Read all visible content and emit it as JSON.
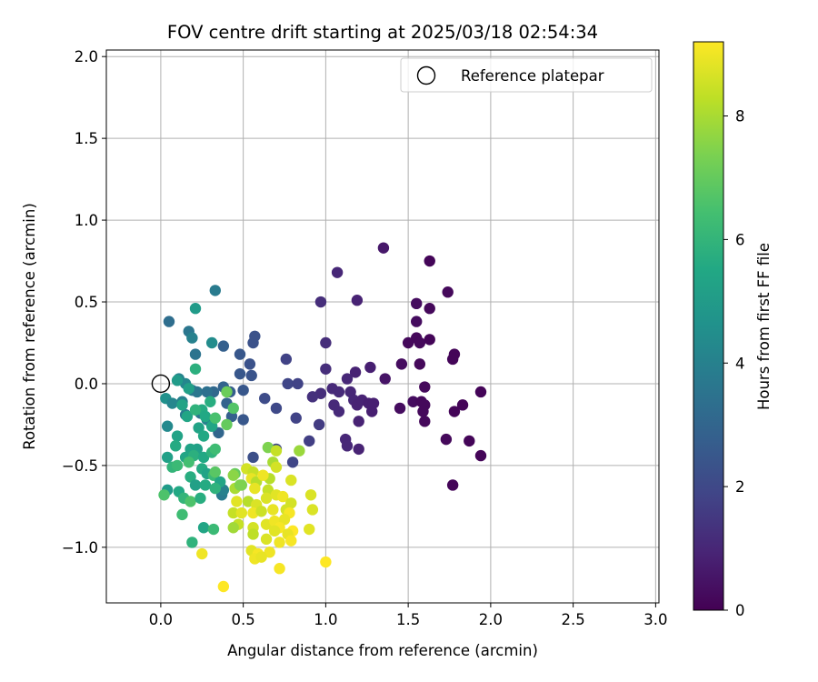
{
  "chart_data": {
    "type": "scatter",
    "title": "FOV centre drift starting at 2025/03/18 02:54:34",
    "xlabel": "Angular distance from reference (arcmin)",
    "ylabel": "Rotation from reference (arcmin)",
    "xlim": [
      -0.33,
      3.02
    ],
    "ylim": [
      -1.34,
      2.04
    ],
    "xticks": [
      "0.0",
      "0.5",
      "1.0",
      "1.5",
      "2.0",
      "2.5",
      "3.0"
    ],
    "xtick_values": [
      0,
      0.5,
      1,
      1.5,
      2,
      2.5,
      3
    ],
    "yticks": [
      "−1.0",
      "−0.5",
      "0.0",
      "0.5",
      "1.0",
      "1.5",
      "2.0"
    ],
    "ytick_values": [
      -1,
      -0.5,
      0,
      0.5,
      1,
      1.5,
      2
    ],
    "grid": true,
    "legend": {
      "position": "top-right",
      "label": "Reference platepar"
    },
    "reference_point": {
      "x": 0.0,
      "y": 0.0
    },
    "colorbar": {
      "label": "Hours from first FF file",
      "range": [
        0,
        9.2
      ],
      "ticks": [
        "0",
        "2",
        "4",
        "6",
        "8"
      ],
      "tick_values": [
        0,
        2,
        4,
        6,
        8
      ],
      "colormap": "viridis"
    },
    "points": [
      {
        "x": 1.63,
        "y": 0.75,
        "h": 0.1
      },
      {
        "x": 1.74,
        "y": 0.56,
        "h": 0.2
      },
      {
        "x": 1.55,
        "y": 0.49,
        "h": 0.3
      },
      {
        "x": 1.63,
        "y": 0.46,
        "h": 0.2
      },
      {
        "x": 1.55,
        "y": 0.38,
        "h": 0.3
      },
      {
        "x": 1.55,
        "y": 0.28,
        "h": 0.2
      },
      {
        "x": 1.63,
        "y": 0.27,
        "h": 0.1
      },
      {
        "x": 1.5,
        "y": 0.25,
        "h": 0.2
      },
      {
        "x": 1.57,
        "y": 0.25,
        "h": 0.2
      },
      {
        "x": 1.78,
        "y": 0.18,
        "h": 0.1
      },
      {
        "x": 1.77,
        "y": 0.15,
        "h": 0.1
      },
      {
        "x": 1.46,
        "y": 0.12,
        "h": 0.3
      },
      {
        "x": 1.57,
        "y": 0.12,
        "h": 0.2
      },
      {
        "x": 1.6,
        "y": -0.02,
        "h": 0.2
      },
      {
        "x": 1.53,
        "y": -0.11,
        "h": 0.3
      },
      {
        "x": 1.58,
        "y": -0.11,
        "h": 0.2
      },
      {
        "x": 1.6,
        "y": -0.13,
        "h": 0.2
      },
      {
        "x": 1.45,
        "y": -0.15,
        "h": 0.3
      },
      {
        "x": 1.59,
        "y": -0.17,
        "h": 0.2
      },
      {
        "x": 1.6,
        "y": -0.23,
        "h": 0.2
      },
      {
        "x": 1.83,
        "y": -0.13,
        "h": 0.1
      },
      {
        "x": 1.78,
        "y": -0.17,
        "h": 0.1
      },
      {
        "x": 1.94,
        "y": -0.05,
        "h": 0.1
      },
      {
        "x": 1.73,
        "y": -0.34,
        "h": 0.2
      },
      {
        "x": 1.87,
        "y": -0.35,
        "h": 0.1
      },
      {
        "x": 1.94,
        "y": -0.44,
        "h": 0.1
      },
      {
        "x": 1.77,
        "y": -0.62,
        "h": 0.1
      },
      {
        "x": 1.35,
        "y": 0.83,
        "h": 0.6
      },
      {
        "x": 1.07,
        "y": 0.68,
        "h": 1.0
      },
      {
        "x": 1.19,
        "y": 0.51,
        "h": 0.9
      },
      {
        "x": 0.97,
        "y": 0.5,
        "h": 1.2
      },
      {
        "x": 1.0,
        "y": 0.25,
        "h": 1.2
      },
      {
        "x": 1.36,
        "y": 0.03,
        "h": 0.5
      },
      {
        "x": 1.27,
        "y": 0.1,
        "h": 0.8
      },
      {
        "x": 1.18,
        "y": 0.07,
        "h": 0.9
      },
      {
        "x": 1.13,
        "y": 0.03,
        "h": 1.0
      },
      {
        "x": 1.0,
        "y": 0.09,
        "h": 1.2
      },
      {
        "x": 1.04,
        "y": -0.03,
        "h": 1.1
      },
      {
        "x": 0.97,
        "y": -0.06,
        "h": 1.2
      },
      {
        "x": 0.92,
        "y": -0.08,
        "h": 1.3
      },
      {
        "x": 1.08,
        "y": -0.05,
        "h": 1.1
      },
      {
        "x": 1.15,
        "y": -0.05,
        "h": 1.0
      },
      {
        "x": 1.17,
        "y": -0.1,
        "h": 1.0
      },
      {
        "x": 1.05,
        "y": -0.13,
        "h": 1.1
      },
      {
        "x": 1.08,
        "y": -0.17,
        "h": 1.1
      },
      {
        "x": 1.19,
        "y": -0.13,
        "h": 0.9
      },
      {
        "x": 1.22,
        "y": -0.1,
        "h": 0.9
      },
      {
        "x": 1.26,
        "y": -0.12,
        "h": 0.8
      },
      {
        "x": 1.29,
        "y": -0.12,
        "h": 0.8
      },
      {
        "x": 1.28,
        "y": -0.17,
        "h": 0.8
      },
      {
        "x": 1.2,
        "y": -0.23,
        "h": 0.9
      },
      {
        "x": 1.12,
        "y": -0.34,
        "h": 1.0
      },
      {
        "x": 1.13,
        "y": -0.38,
        "h": 1.0
      },
      {
        "x": 1.2,
        "y": -0.4,
        "h": 0.9
      },
      {
        "x": 0.96,
        "y": -0.25,
        "h": 1.6
      },
      {
        "x": 0.9,
        "y": -0.35,
        "h": 1.7
      },
      {
        "x": 0.82,
        "y": -0.21,
        "h": 1.8
      },
      {
        "x": 0.76,
        "y": 0.15,
        "h": 1.8
      },
      {
        "x": 0.77,
        "y": 0.0,
        "h": 1.9
      },
      {
        "x": 0.83,
        "y": 0.0,
        "h": 1.8
      },
      {
        "x": 0.7,
        "y": -0.15,
        "h": 2.0
      },
      {
        "x": 0.63,
        "y": -0.09,
        "h": 2.1
      },
      {
        "x": 0.8,
        "y": -0.48,
        "h": 1.9
      },
      {
        "x": 0.7,
        "y": -0.4,
        "h": 2.0
      },
      {
        "x": 0.56,
        "y": -0.45,
        "h": 2.2
      },
      {
        "x": 0.56,
        "y": 0.25,
        "h": 2.3
      },
      {
        "x": 0.57,
        "y": 0.29,
        "h": 2.3
      },
      {
        "x": 0.54,
        "y": 0.12,
        "h": 2.3
      },
      {
        "x": 0.48,
        "y": 0.18,
        "h": 2.5
      },
      {
        "x": 0.55,
        "y": 0.05,
        "h": 2.4
      },
      {
        "x": 0.48,
        "y": 0.06,
        "h": 2.5
      },
      {
        "x": 0.5,
        "y": -0.04,
        "h": 2.5
      },
      {
        "x": 0.42,
        "y": -0.05,
        "h": 2.7
      },
      {
        "x": 0.5,
        "y": -0.22,
        "h": 2.5
      },
      {
        "x": 0.38,
        "y": 0.23,
        "h": 2.8
      },
      {
        "x": 0.38,
        "y": -0.02,
        "h": 2.9
      },
      {
        "x": 0.4,
        "y": -0.12,
        "h": 2.9
      },
      {
        "x": 0.32,
        "y": -0.05,
        "h": 3.1
      },
      {
        "x": 0.43,
        "y": -0.2,
        "h": 2.8
      },
      {
        "x": 0.35,
        "y": -0.3,
        "h": 3.0
      },
      {
        "x": 0.05,
        "y": 0.38,
        "h": 3.3
      },
      {
        "x": 0.33,
        "y": 0.57,
        "h": 3.8
      },
      {
        "x": 0.17,
        "y": 0.32,
        "h": 3.6
      },
      {
        "x": 0.19,
        "y": 0.28,
        "h": 4.0
      },
      {
        "x": 0.21,
        "y": 0.18,
        "h": 3.5
      },
      {
        "x": 0.31,
        "y": 0.25,
        "h": 4.4
      },
      {
        "x": 0.11,
        "y": 0.03,
        "h": 4.1
      },
      {
        "x": 0.15,
        "y": 0.0,
        "h": 4.2
      },
      {
        "x": 0.19,
        "y": -0.04,
        "h": 3.7
      },
      {
        "x": 0.22,
        "y": -0.05,
        "h": 3.6
      },
      {
        "x": 0.28,
        "y": -0.05,
        "h": 3.4
      },
      {
        "x": 0.13,
        "y": -0.11,
        "h": 4.0
      },
      {
        "x": 0.03,
        "y": -0.09,
        "h": 4.6
      },
      {
        "x": 0.07,
        "y": -0.12,
        "h": 4.2
      },
      {
        "x": 0.15,
        "y": -0.19,
        "h": 3.8
      },
      {
        "x": 0.24,
        "y": -0.18,
        "h": 3.6
      },
      {
        "x": 0.28,
        "y": -0.22,
        "h": 4.0
      },
      {
        "x": 0.04,
        "y": -0.26,
        "h": 4.3
      },
      {
        "x": 0.37,
        "y": -0.68,
        "h": 3.8
      },
      {
        "x": 0.38,
        "y": -0.65,
        "h": 4.0
      },
      {
        "x": 0.21,
        "y": 0.46,
        "h": 5.0
      },
      {
        "x": 0.21,
        "y": 0.09,
        "h": 5.8
      },
      {
        "x": 0.1,
        "y": 0.02,
        "h": 5.0
      },
      {
        "x": 0.17,
        "y": -0.03,
        "h": 5.2
      },
      {
        "x": 0.13,
        "y": -0.13,
        "h": 5.3
      },
      {
        "x": 0.16,
        "y": -0.2,
        "h": 5.4
      },
      {
        "x": 0.25,
        "y": -0.16,
        "h": 5.6
      },
      {
        "x": 0.21,
        "y": -0.16,
        "h": 5.9
      },
      {
        "x": 0.27,
        "y": -0.2,
        "h": 5.5
      },
      {
        "x": 0.23,
        "y": -0.27,
        "h": 5.3
      },
      {
        "x": 0.31,
        "y": -0.26,
        "h": 5.4
      },
      {
        "x": 0.3,
        "y": -0.11,
        "h": 5.7
      },
      {
        "x": 0.26,
        "y": -0.32,
        "h": 5.5
      },
      {
        "x": 0.22,
        "y": -0.4,
        "h": 5.2
      },
      {
        "x": 0.1,
        "y": -0.32,
        "h": 5.3
      },
      {
        "x": 0.09,
        "y": -0.38,
        "h": 5.6
      },
      {
        "x": 0.18,
        "y": -0.4,
        "h": 5.3
      },
      {
        "x": 0.15,
        "y": -0.45,
        "h": 5.4
      },
      {
        "x": 0.2,
        "y": -0.44,
        "h": 5.8
      },
      {
        "x": 0.26,
        "y": -0.45,
        "h": 5.5
      },
      {
        "x": 0.31,
        "y": -0.42,
        "h": 5.9
      },
      {
        "x": 0.33,
        "y": -0.4,
        "h": 6.3
      },
      {
        "x": 0.04,
        "y": -0.45,
        "h": 5.2
      },
      {
        "x": 0.07,
        "y": -0.51,
        "h": 6.0
      },
      {
        "x": 0.1,
        "y": -0.5,
        "h": 6.2
      },
      {
        "x": 0.17,
        "y": -0.48,
        "h": 6.4
      },
      {
        "x": 0.25,
        "y": -0.52,
        "h": 5.6
      },
      {
        "x": 0.28,
        "y": -0.55,
        "h": 5.3
      },
      {
        "x": 0.18,
        "y": -0.57,
        "h": 5.7
      },
      {
        "x": 0.21,
        "y": -0.62,
        "h": 5.2
      },
      {
        "x": 0.27,
        "y": -0.62,
        "h": 5.6
      },
      {
        "x": 0.32,
        "y": -0.56,
        "h": 6.2
      },
      {
        "x": 0.36,
        "y": -0.6,
        "h": 5.4
      },
      {
        "x": 0.33,
        "y": -0.64,
        "h": 5.9
      },
      {
        "x": 0.04,
        "y": -0.65,
        "h": 5.0
      },
      {
        "x": 0.02,
        "y": -0.68,
        "h": 6.6
      },
      {
        "x": 0.11,
        "y": -0.66,
        "h": 5.5
      },
      {
        "x": 0.14,
        "y": -0.7,
        "h": 6.0
      },
      {
        "x": 0.18,
        "y": -0.72,
        "h": 6.6
      },
      {
        "x": 0.24,
        "y": -0.7,
        "h": 5.7
      },
      {
        "x": 0.13,
        "y": -0.8,
        "h": 6.3
      },
      {
        "x": 0.26,
        "y": -0.88,
        "h": 5.4
      },
      {
        "x": 0.32,
        "y": -0.89,
        "h": 6.2
      },
      {
        "x": 0.19,
        "y": -0.97,
        "h": 5.9
      },
      {
        "x": 0.4,
        "y": -0.05,
        "h": 7.1
      },
      {
        "x": 0.4,
        "y": -0.25,
        "h": 7.0
      },
      {
        "x": 0.44,
        "y": -0.15,
        "h": 6.7
      },
      {
        "x": 0.33,
        "y": -0.21,
        "h": 6.5
      },
      {
        "x": 0.45,
        "y": -0.55,
        "h": 7.0
      },
      {
        "x": 0.33,
        "y": -0.54,
        "h": 6.8
      },
      {
        "x": 0.49,
        "y": -0.62,
        "h": 7.4
      },
      {
        "x": 0.44,
        "y": -0.56,
        "h": 7.6
      },
      {
        "x": 0.65,
        "y": -0.39,
        "h": 7.4
      },
      {
        "x": 0.7,
        "y": -0.41,
        "h": 8.4
      },
      {
        "x": 0.68,
        "y": -0.48,
        "h": 8.0
      },
      {
        "x": 0.7,
        "y": -0.51,
        "h": 8.6
      },
      {
        "x": 0.66,
        "y": -0.58,
        "h": 8.2
      },
      {
        "x": 0.84,
        "y": -0.41,
        "h": 7.8
      },
      {
        "x": 0.52,
        "y": -0.52,
        "h": 8.6
      },
      {
        "x": 0.56,
        "y": -0.54,
        "h": 8.4
      },
      {
        "x": 0.55,
        "y": -0.58,
        "h": 8.9
      },
      {
        "x": 0.58,
        "y": -0.6,
        "h": 8.2
      },
      {
        "x": 0.62,
        "y": -0.56,
        "h": 9.0
      },
      {
        "x": 0.79,
        "y": -0.59,
        "h": 8.7
      },
      {
        "x": 0.45,
        "y": -0.64,
        "h": 8.0
      },
      {
        "x": 0.48,
        "y": -0.62,
        "h": 7.4
      },
      {
        "x": 0.57,
        "y": -0.64,
        "h": 8.9
      },
      {
        "x": 0.65,
        "y": -0.65,
        "h": 8.4
      },
      {
        "x": 0.64,
        "y": -0.7,
        "h": 8.7
      },
      {
        "x": 0.7,
        "y": -0.68,
        "h": 8.8
      },
      {
        "x": 0.74,
        "y": -0.69,
        "h": 9.0
      },
      {
        "x": 0.91,
        "y": -0.68,
        "h": 8.7
      },
      {
        "x": 0.46,
        "y": -0.72,
        "h": 8.8
      },
      {
        "x": 0.53,
        "y": -0.72,
        "h": 8.2
      },
      {
        "x": 0.58,
        "y": -0.74,
        "h": 8.7
      },
      {
        "x": 0.79,
        "y": -0.73,
        "h": 8.6
      },
      {
        "x": 0.44,
        "y": -0.79,
        "h": 8.4
      },
      {
        "x": 0.49,
        "y": -0.79,
        "h": 8.8
      },
      {
        "x": 0.56,
        "y": -0.79,
        "h": 9.0
      },
      {
        "x": 0.61,
        "y": -0.78,
        "h": 8.5
      },
      {
        "x": 0.68,
        "y": -0.77,
        "h": 8.9
      },
      {
        "x": 0.76,
        "y": -0.77,
        "h": 8.6
      },
      {
        "x": 0.78,
        "y": -0.79,
        "h": 9.1
      },
      {
        "x": 0.92,
        "y": -0.77,
        "h": 8.7
      },
      {
        "x": 0.64,
        "y": -0.86,
        "h": 8.8
      },
      {
        "x": 0.69,
        "y": -0.84,
        "h": 9.0
      },
      {
        "x": 0.75,
        "y": -0.83,
        "h": 8.9
      },
      {
        "x": 0.72,
        "y": -0.88,
        "h": 9.1
      },
      {
        "x": 0.47,
        "y": -0.86,
        "h": 8.4
      },
      {
        "x": 0.44,
        "y": -0.88,
        "h": 7.9
      },
      {
        "x": 0.56,
        "y": -0.88,
        "h": 8.6
      },
      {
        "x": 0.69,
        "y": -0.9,
        "h": 8.8
      },
      {
        "x": 0.8,
        "y": -0.9,
        "h": 9.2
      },
      {
        "x": 0.77,
        "y": -0.92,
        "h": 8.9
      },
      {
        "x": 0.9,
        "y": -0.89,
        "h": 8.8
      },
      {
        "x": 0.56,
        "y": -0.92,
        "h": 8.3
      },
      {
        "x": 0.64,
        "y": -0.95,
        "h": 8.7
      },
      {
        "x": 0.72,
        "y": -0.97,
        "h": 9.0
      },
      {
        "x": 0.79,
        "y": -0.96,
        "h": 9.1
      },
      {
        "x": 0.66,
        "y": -1.03,
        "h": 9.0
      },
      {
        "x": 0.55,
        "y": -1.02,
        "h": 8.8
      },
      {
        "x": 0.59,
        "y": -1.04,
        "h": 9.1
      },
      {
        "x": 0.57,
        "y": -1.07,
        "h": 9.0
      },
      {
        "x": 0.61,
        "y": -1.06,
        "h": 8.9
      },
      {
        "x": 0.25,
        "y": -1.04,
        "h": 9.0
      },
      {
        "x": 1.0,
        "y": -1.09,
        "h": 9.2
      },
      {
        "x": 0.72,
        "y": -1.13,
        "h": 9.1
      },
      {
        "x": 0.38,
        "y": -1.24,
        "h": 9.2
      }
    ]
  }
}
